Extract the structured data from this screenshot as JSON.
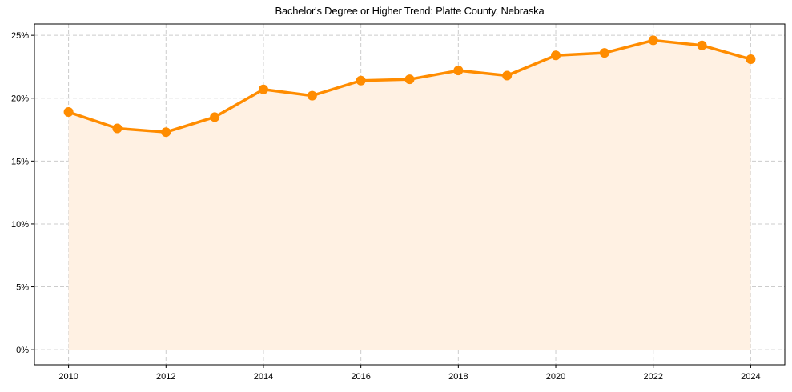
{
  "chart_data": {
    "type": "line",
    "title": "Bachelor's Degree or Higher Trend: Platte County, Nebraska",
    "xlabel": "",
    "ylabel": "",
    "x": [
      2010,
      2011,
      2012,
      2013,
      2014,
      2015,
      2016,
      2017,
      2018,
      2019,
      2020,
      2021,
      2022,
      2023,
      2024
    ],
    "series": [
      {
        "name": "Bachelor's Degree or Higher",
        "values": [
          18.9,
          17.6,
          17.3,
          18.5,
          20.7,
          20.2,
          21.4,
          21.5,
          22.2,
          21.8,
          23.4,
          23.6,
          24.6,
          24.2,
          23.1
        ],
        "unit": "%",
        "color": "#ff8c00",
        "fill_color": "#fff1e3",
        "marker": "circle"
      }
    ],
    "xticks": [
      2010,
      2012,
      2014,
      2016,
      2018,
      2020,
      2022,
      2024
    ],
    "xtick_labels": [
      "2010",
      "2012",
      "2014",
      "2016",
      "2018",
      "2020",
      "2022",
      "2024"
    ],
    "yticks": [
      0,
      5,
      10,
      15,
      20,
      25
    ],
    "ytick_labels": [
      "0%",
      "5%",
      "10%",
      "15%",
      "20%",
      "25%"
    ],
    "xlim": [
      2009.3,
      2024.7
    ],
    "ylim": [
      -1.2,
      25.9
    ],
    "grid": true,
    "grid_style": "dashed",
    "legend": null
  }
}
